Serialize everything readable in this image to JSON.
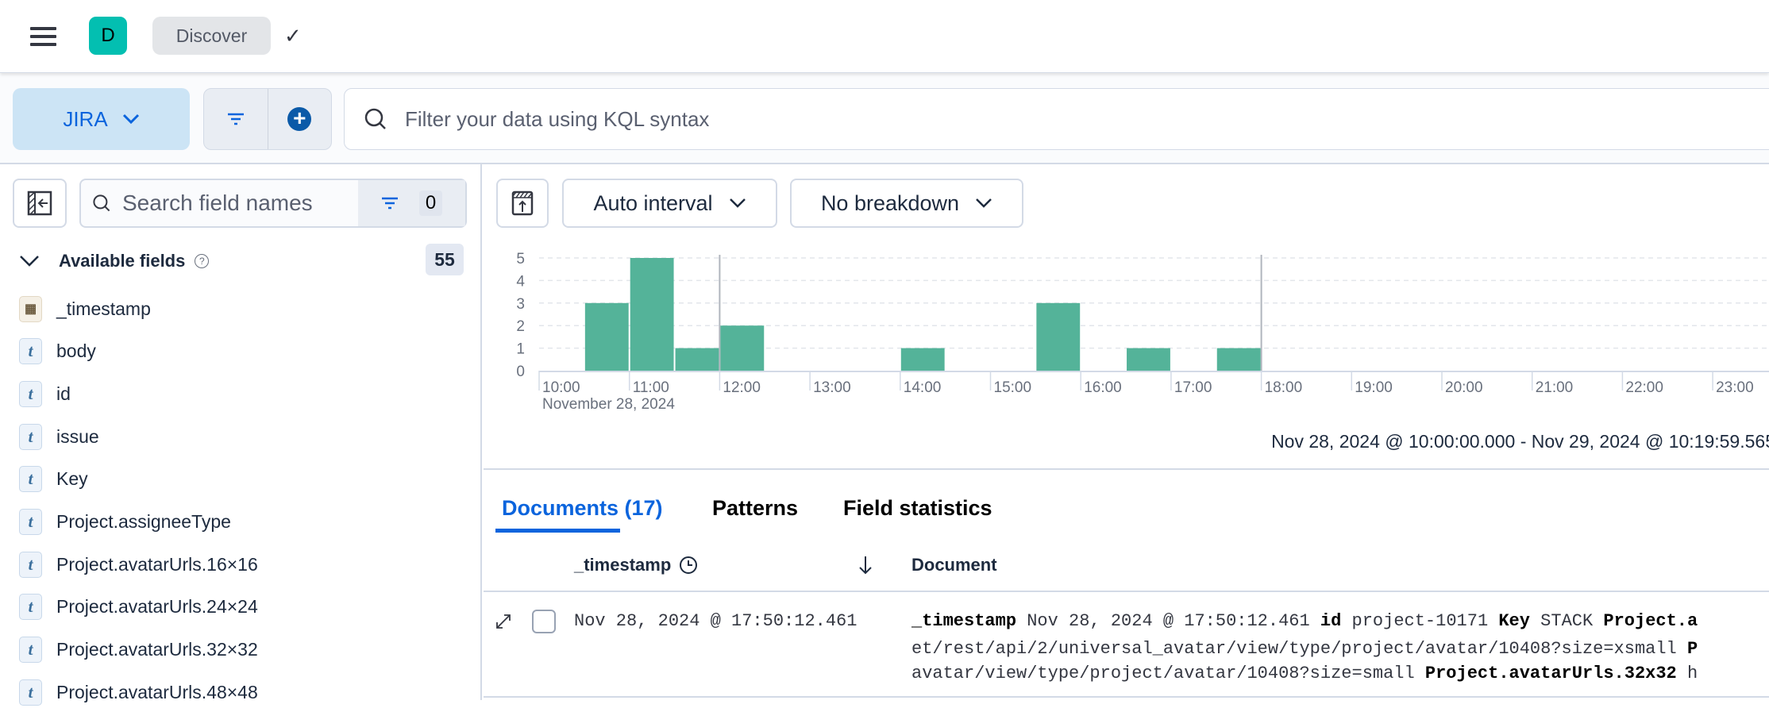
{
  "header": {
    "app_initial": "D",
    "breadcrumb": "Discover",
    "icons": [
      "menu-icon",
      "check-icon"
    ],
    "badge_color": "#03bfb1"
  },
  "toolbar": {
    "data_view": "JIRA",
    "query_placeholder": "Filter your data using KQL syntax"
  },
  "sidebar": {
    "search_placeholder": "Search field names",
    "filter_count": "0",
    "available_label": "Available fields",
    "available_count": "55",
    "fields": [
      {
        "name": "_timestamp",
        "type": "date"
      },
      {
        "name": "body",
        "type": "t"
      },
      {
        "name": "id",
        "type": "t"
      },
      {
        "name": "issue",
        "type": "t"
      },
      {
        "name": "Key",
        "type": "t"
      },
      {
        "name": "Project.assigneeType",
        "type": "t"
      },
      {
        "name": "Project.avatarUrls.16×16",
        "type": "t"
      },
      {
        "name": "Project.avatarUrls.24×24",
        "type": "t"
      },
      {
        "name": "Project.avatarUrls.32×32",
        "type": "t"
      },
      {
        "name": "Project.avatarUrls.48×48",
        "type": "t"
      }
    ]
  },
  "chart_controls": {
    "interval": "Auto interval",
    "breakdown": "No breakdown"
  },
  "chart_data": {
    "type": "bar",
    "x_unit": "30-minute buckets",
    "x": [
      "10:30",
      "11:00",
      "11:30",
      "12:00",
      "14:00",
      "15:30",
      "16:30",
      "17:30"
    ],
    "values": [
      3,
      5,
      1,
      2,
      1,
      3,
      1,
      1
    ],
    "ylim": [
      0,
      5
    ],
    "yticks": [
      "0",
      "1",
      "2",
      "3",
      "4",
      "5"
    ],
    "xticks": [
      "10:00",
      "11:00",
      "12:00",
      "13:00",
      "14:00",
      "15:00",
      "16:00",
      "17:00",
      "18:00",
      "19:00",
      "20:00",
      "21:00",
      "22:00",
      "23:00"
    ],
    "x_sublabel": "November 28, 2024",
    "markers": [
      "12:00",
      "18:00"
    ],
    "bar_color": "#54b399",
    "grid": true
  },
  "time_range": "Nov 28, 2024 @ 10:00:00.000 - Nov 29, 2024 @ 10:19:59.565",
  "tabs": [
    {
      "label": "Documents (17)",
      "active": true
    },
    {
      "label": "Patterns"
    },
    {
      "label": "Field statistics"
    }
  ],
  "table": {
    "columns": [
      "_timestamp",
      "Document"
    ],
    "rows": [
      {
        "timestamp": "Nov 28, 2024 @ 17:50:12.461",
        "doc": {
          "k1": "_timestamp",
          "v1": "Nov 28, 2024 @ 17:50:12.461",
          "k2": "id",
          "v2": "project-10171",
          "k3": "Key",
          "v3": "STACK",
          "k4": "Project.a",
          "line2": "et/rest/api/2/universal_avatar/view/type/project/avatar/10408?size=xsmall",
          "line2_k": "P",
          "line3": "avatar/view/type/project/avatar/10408?size=small",
          "line3_k": "Project.avatarUrls.32x32",
          "line3_tail": "h"
        }
      }
    ]
  }
}
